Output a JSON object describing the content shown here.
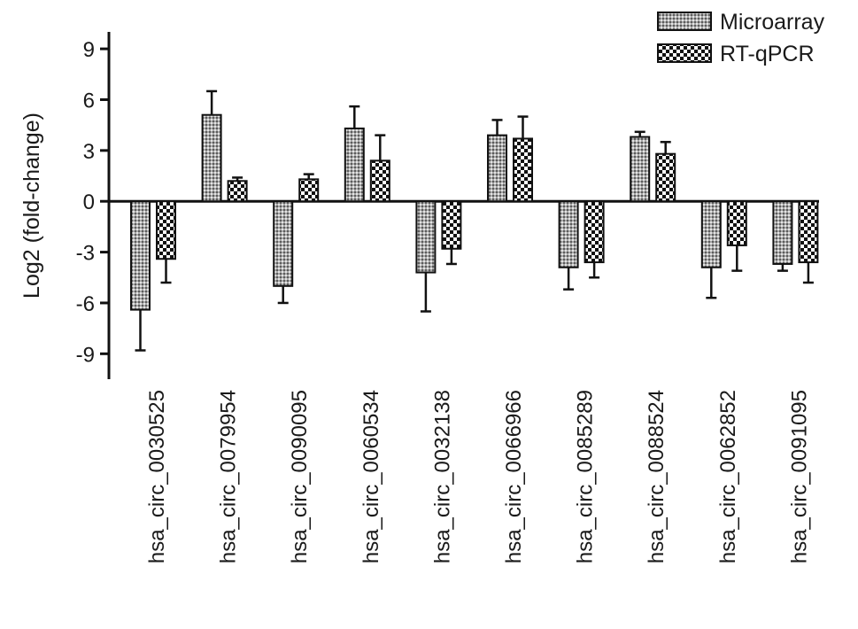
{
  "chart_data": {
    "type": "bar",
    "ylabel": "Log2 (fold-change)",
    "ylim": [
      -10.5,
      10
    ],
    "yticks": [
      9,
      6,
      3,
      0,
      -3,
      -6,
      -9
    ],
    "ytick_labels": [
      "9",
      "6",
      "3",
      "0",
      "-3",
      "-6",
      "-9"
    ],
    "legend_position": "top-right",
    "categories": [
      "hsa_circ_0030525",
      "hsa_circ_0079954",
      "hsa_circ_0090095",
      "hsa_circ_0060534",
      "hsa_circ_0032138",
      "hsa_circ_0066966",
      "hsa_circ_0085289",
      "hsa_circ_0088524",
      "hsa_circ_0062852",
      "hsa_circ_0091095"
    ],
    "series": [
      {
        "name": "Microarray",
        "pattern": "dense-crosshatch",
        "values": [
          -6.4,
          5.1,
          -5.0,
          4.3,
          -4.2,
          3.9,
          -3.9,
          3.8,
          -3.9,
          -3.7
        ],
        "errors": [
          2.4,
          1.4,
          1.0,
          1.3,
          2.3,
          0.9,
          1.3,
          0.3,
          1.8,
          0.4
        ]
      },
      {
        "name": "RT-qPCR",
        "pattern": "checkerboard",
        "values": [
          -3.4,
          1.2,
          1.3,
          2.4,
          -2.8,
          3.7,
          -3.6,
          2.8,
          -2.6,
          -3.6
        ],
        "errors": [
          1.4,
          0.2,
          0.3,
          1.5,
          0.9,
          1.3,
          0.9,
          0.7,
          1.5,
          1.2
        ]
      }
    ],
    "grid": false
  }
}
